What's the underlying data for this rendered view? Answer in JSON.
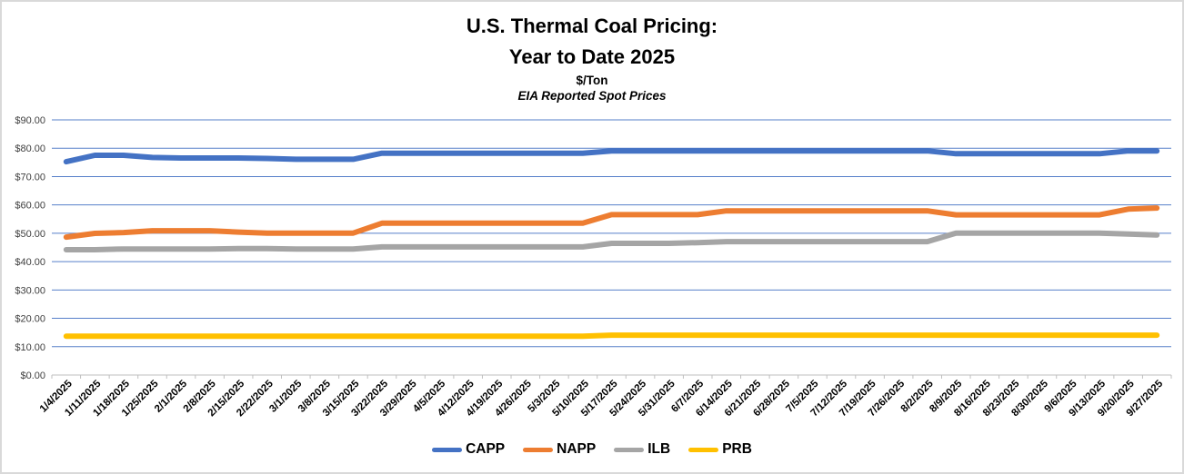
{
  "window": {
    "background": "#FFFFFF",
    "border_color": "#D9D9D9"
  },
  "title": {
    "line1": "U.S. Thermal Coal Pricing:",
    "line2": "Year to Date 2025",
    "units": "$/Ton",
    "subtitle": "EIA Reported Spot Prices"
  },
  "chart_data": {
    "type": "line",
    "title": "U.S. Thermal Coal Pricing: Year to Date 2025",
    "ylabel": "$/Ton",
    "annotation": "EIA Reported Spot Prices",
    "ylim": [
      0,
      90
    ],
    "y_tick_step": 10,
    "y_tick_labels": [
      "$0.00",
      "$10.00",
      "$20.00",
      "$30.00",
      "$40.00",
      "$50.00",
      "$60.00",
      "$70.00",
      "$80.00",
      "$90.00"
    ],
    "grid": "horizontal",
    "gridline_color": "#4472C4",
    "axis_color": "#BFBFBF",
    "legend_position": "bottom",
    "x": [
      "1/4/2025",
      "1/11/2025",
      "1/18/2025",
      "1/25/2025",
      "2/1/2025",
      "2/8/2025",
      "2/15/2025",
      "2/22/2025",
      "3/1/2025",
      "3/8/2025",
      "3/15/2025",
      "3/22/2025",
      "3/29/2025",
      "4/5/2025",
      "4/12/2025",
      "4/19/2025",
      "4/26/2025",
      "5/3/2025",
      "5/10/2025",
      "5/17/2025",
      "5/24/2025",
      "5/31/2025",
      "6/7/2025",
      "6/14/2025",
      "6/21/2025",
      "6/28/2025",
      "7/5/2025",
      "7/12/2025",
      "7/19/2025",
      "7/26/2025",
      "8/2/2025",
      "8/9/2025",
      "8/16/2025",
      "8/23/2025",
      "8/30/2025",
      "9/6/2025",
      "9/13/2025",
      "9/20/2025",
      "9/27/2025"
    ],
    "series": [
      {
        "name": "CAPP",
        "color": "#4472C4",
        "values": [
          75.25,
          77.5,
          77.5,
          76.75,
          76.55,
          76.55,
          76.55,
          76.4,
          76.1,
          76.1,
          76.1,
          78.25,
          78.25,
          78.25,
          78.25,
          78.25,
          78.25,
          78.25,
          78.25,
          79.05,
          79.05,
          79.05,
          79.05,
          79.05,
          79.05,
          79.05,
          79.05,
          79.05,
          79.05,
          79.05,
          79.05,
          78.05,
          78.05,
          78.05,
          78.05,
          78.05,
          78.05,
          79.05,
          79.05
        ]
      },
      {
        "name": "NAPP",
        "color": "#ED7D31",
        "values": [
          48.65,
          49.95,
          50.25,
          50.9,
          50.9,
          50.9,
          50.4,
          50.05,
          50.05,
          50.05,
          50.05,
          53.55,
          53.55,
          53.55,
          53.55,
          53.55,
          53.55,
          53.55,
          53.55,
          56.55,
          56.55,
          56.55,
          56.55,
          57.9,
          57.9,
          57.9,
          57.9,
          57.9,
          57.9,
          57.9,
          57.9,
          56.5,
          56.5,
          56.5,
          56.5,
          56.5,
          56.5,
          58.5,
          58.9
        ]
      },
      {
        "name": "ILB",
        "color": "#A5A5A5",
        "values": [
          44.2,
          44.2,
          44.45,
          44.45,
          44.45,
          44.45,
          44.6,
          44.6,
          44.45,
          44.45,
          44.45,
          45.2,
          45.2,
          45.2,
          45.2,
          45.2,
          45.2,
          45.2,
          45.2,
          46.45,
          46.45,
          46.45,
          46.7,
          47.05,
          47.05,
          47.05,
          47.05,
          47.05,
          47.05,
          47.05,
          47.05,
          50.05,
          50.05,
          50.05,
          50.05,
          50.05,
          50.05,
          49.7,
          49.4
        ]
      },
      {
        "name": "PRB",
        "color": "#FFC000",
        "values": [
          13.7,
          13.7,
          13.7,
          13.7,
          13.7,
          13.7,
          13.7,
          13.7,
          13.7,
          13.7,
          13.7,
          13.7,
          13.7,
          13.7,
          13.7,
          13.7,
          13.7,
          13.7,
          13.7,
          14.05,
          14.05,
          14.05,
          14.05,
          14.05,
          14.05,
          14.05,
          14.05,
          14.05,
          14.05,
          14.05,
          14.05,
          14.05,
          14.05,
          14.05,
          14.05,
          14.05,
          14.05,
          14.05,
          14.05
        ]
      }
    ]
  }
}
